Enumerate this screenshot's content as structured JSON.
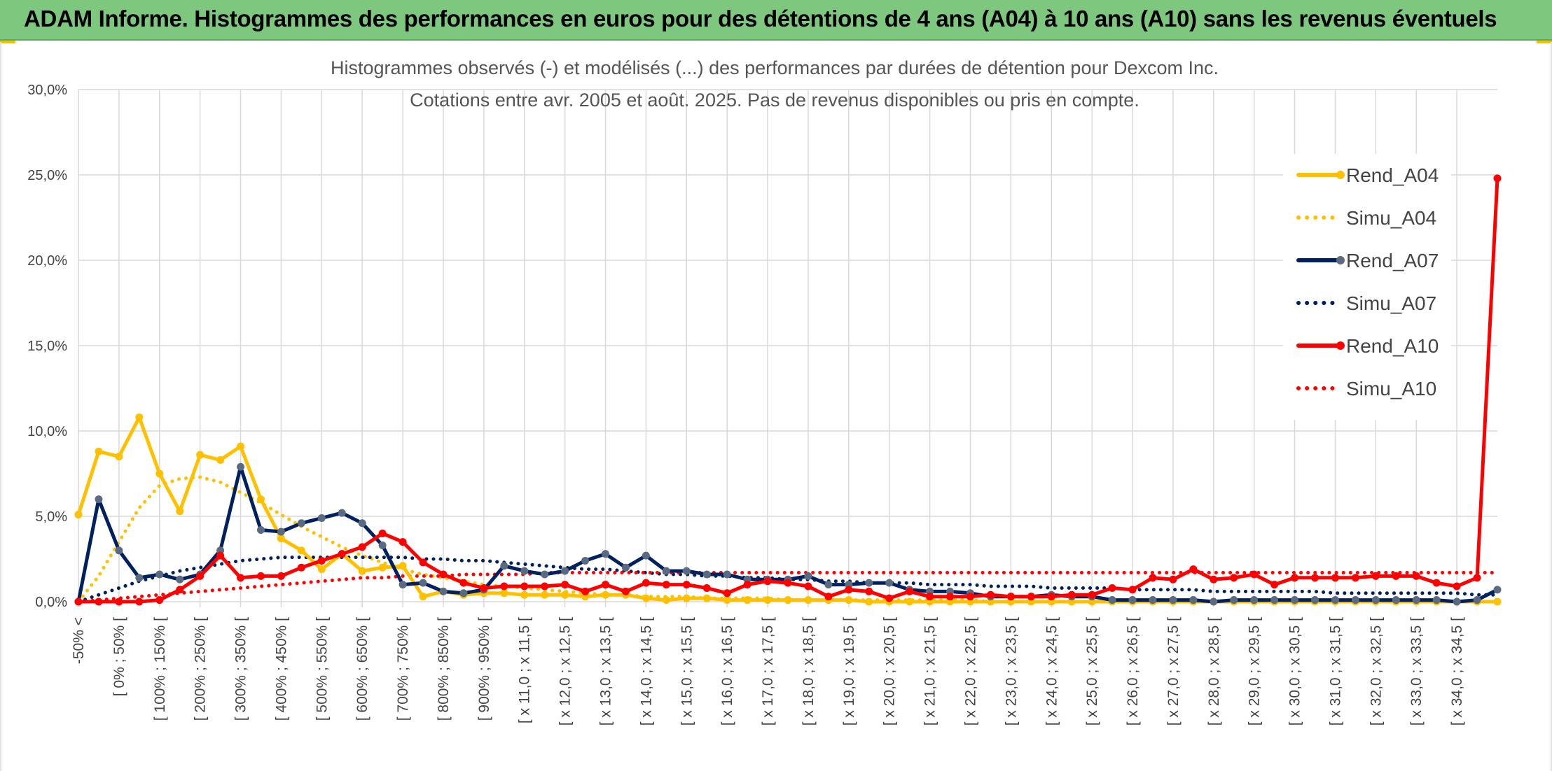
{
  "banner": {
    "title": "ADAM Informe. Histogrammes des performances en euros pour des détentions de 4 ans (A04) à 10 ans (A10) sans les revenus éventuels"
  },
  "colors": {
    "banner_bg": "#7dc77f",
    "a04": "#ffc000",
    "a07": "#002060",
    "a10": "#ff0000",
    "a07_marker": "#5a6a80",
    "grid": "#d9d9d9"
  },
  "chart_data": {
    "type": "line",
    "title": "Histogrammes observés (-) et modélisés (...) des performances par durées de détention pour Dexcom Inc.",
    "subtitle": "Cotations entre avr. 2005 et août. 2025. Pas de revenus disponibles ou pris en compte.",
    "y_ticks": [
      "0,0%",
      "5,0%",
      "10,0%",
      "15,0%",
      "20,0%",
      "25,0%",
      "30,0%"
    ],
    "ylim": [
      0,
      30
    ],
    "grid": true,
    "legend_position": "right",
    "x_tick_labels": [
      "-50% <",
      "[ 0% ; 50% [",
      "[ 100% ; 150% [",
      "[ 200% ; 250% [",
      "[ 300% ; 350% [",
      "[ 400% ; 450% [",
      "[ 500% ; 550% [",
      "[ 600% ; 650% [",
      "[ 700% ; 750% [",
      "[ 800% ; 850% [",
      "[ 900% ; 950% [",
      "[ x 11,0 ; x 11,5 [",
      "[ x 12,0 ; x 12,5 [",
      "[ x 13,0 ; x 13,5 [",
      "[ x 14,0 ; x 14,5 [",
      "[ x 15,0 ; x 15,5 [",
      "[ x 16,0 ; x 16,5 [",
      "[ x 17,0 ; x 17,5 [",
      "[ x 18,0 ; x 18,5 [",
      "[ x 19,0 ; x 19,5 [",
      "[ x 20,0 ; x 20,5 [",
      "[ x 21,0 ; x 21,5 [",
      "[ x 22,0 ; x 22,5 [",
      "[ x 23,0 ; x 23,5 [",
      "[ x 24,0 ; x 24,5 [",
      "[ x 25,0 ; x 25,5 [",
      "[ x 26,0 ; x 26,5 [",
      "[ x 27,0 ; x 27,5 [",
      "[ x 28,0 ; x 28,5 [",
      "[ x 29,0 ; x 29,5 [",
      "[ x 30,0 ; x 30,5 [",
      "[ x 31,0 ; x 31,5 [",
      "[ x 32,0 ; x 32,5 [",
      "[ x 33,0 ; x 33,5 [",
      "[ x 34,0 ; x 34,5 ["
    ],
    "series": [
      {
        "name": "Rend_A04",
        "style": "solid",
        "color": "#ffc000",
        "markers": true,
        "values": [
          5.1,
          8.8,
          8.5,
          10.8,
          7.5,
          5.3,
          8.6,
          8.3,
          9.1,
          6.0,
          3.7,
          3.0,
          1.9,
          2.8,
          1.8,
          2.0,
          2.1,
          0.3,
          0.6,
          0.4,
          0.5,
          0.5,
          0.4,
          0.4,
          0.4,
          0.3,
          0.4,
          0.4,
          0.2,
          0.1,
          0.2,
          0.2,
          0.1,
          0.1,
          0.1,
          0.1,
          0.1,
          0.1,
          0.1,
          0.0,
          0.0,
          0.0,
          0.0,
          0.0,
          0.0,
          0.0,
          0.0,
          0.0,
          0.0,
          0.0,
          0.0,
          0.0,
          0.0,
          0.0,
          0.0,
          0.0,
          0.0,
          0.0,
          0.0,
          0.0,
          0.0,
          0.0,
          0.0,
          0.0,
          0.0,
          0.0,
          0.0,
          0.0,
          0.0,
          0.0,
          0.0
        ]
      },
      {
        "name": "Simu_A04",
        "style": "dotted",
        "color": "#ffc000",
        "markers": false,
        "values": [
          0.0,
          1.5,
          3.5,
          5.5,
          6.8,
          7.2,
          7.3,
          7.0,
          6.4,
          5.8,
          5.1,
          4.4,
          3.8,
          3.2,
          2.7,
          2.3,
          1.9,
          1.6,
          1.4,
          1.2,
          1.0,
          0.9,
          0.8,
          0.7,
          0.6,
          0.5,
          0.4,
          0.4,
          0.3,
          0.3,
          0.3,
          0.2,
          0.2,
          0.2,
          0.2,
          0.1,
          0.1,
          0.1,
          0.1,
          0.1,
          0.1,
          0.1,
          0.1,
          0.1,
          0.1,
          0.0,
          0.0,
          0.0,
          0.0,
          0.0,
          0.0,
          0.0,
          0.0,
          0.0,
          0.0,
          0.0,
          0.0,
          0.0,
          0.0,
          0.0,
          0.0,
          0.0,
          0.0,
          0.0,
          0.0,
          0.0,
          0.0,
          0.0,
          0.0,
          0.0,
          0.0
        ]
      },
      {
        "name": "Rend_A07",
        "style": "solid",
        "color": "#002060",
        "markers": true,
        "values": [
          0.0,
          6.0,
          3.0,
          1.4,
          1.6,
          1.3,
          1.6,
          3.0,
          7.9,
          4.2,
          4.1,
          4.6,
          4.9,
          5.2,
          4.6,
          3.3,
          1.0,
          1.1,
          0.6,
          0.5,
          0.7,
          2.1,
          1.8,
          1.6,
          1.8,
          2.4,
          2.8,
          2.0,
          2.7,
          1.8,
          1.8,
          1.6,
          1.6,
          1.3,
          1.3,
          1.3,
          1.5,
          1.0,
          1.0,
          1.1,
          1.1,
          0.7,
          0.6,
          0.6,
          0.5,
          0.3,
          0.3,
          0.3,
          0.4,
          0.3,
          0.3,
          0.1,
          0.1,
          0.1,
          0.1,
          0.1,
          0.0,
          0.1,
          0.1,
          0.1,
          0.1,
          0.1,
          0.1,
          0.1,
          0.1,
          0.1,
          0.1,
          0.1,
          0.0,
          0.1,
          0.7
        ]
      },
      {
        "name": "Simu_A07",
        "style": "dotted",
        "color": "#002060",
        "markers": false,
        "values": [
          0.0,
          0.4,
          0.8,
          1.2,
          1.5,
          1.8,
          2.0,
          2.2,
          2.4,
          2.5,
          2.6,
          2.6,
          2.6,
          2.6,
          2.6,
          2.6,
          2.6,
          2.5,
          2.5,
          2.4,
          2.4,
          2.3,
          2.2,
          2.1,
          2.0,
          1.9,
          1.9,
          1.8,
          1.7,
          1.6,
          1.6,
          1.5,
          1.5,
          1.4,
          1.4,
          1.3,
          1.3,
          1.2,
          1.2,
          1.1,
          1.1,
          1.1,
          1.0,
          1.0,
          1.0,
          0.9,
          0.9,
          0.9,
          0.8,
          0.8,
          0.8,
          0.8,
          0.7,
          0.7,
          0.7,
          0.7,
          0.6,
          0.6,
          0.6,
          0.6,
          0.6,
          0.6,
          0.5,
          0.5,
          0.5,
          0.5,
          0.5,
          0.5,
          0.5,
          0.4,
          0.4
        ]
      },
      {
        "name": "Rend_A10",
        "style": "solid",
        "color": "#ff0000",
        "markers": true,
        "values": [
          0.0,
          0.0,
          0.0,
          0.0,
          0.1,
          0.7,
          1.5,
          2.7,
          1.4,
          1.5,
          1.5,
          2.0,
          2.4,
          2.8,
          3.2,
          4.0,
          3.5,
          2.3,
          1.6,
          1.1,
          0.8,
          0.9,
          0.9,
          0.9,
          1.0,
          0.6,
          1.0,
          0.6,
          1.1,
          1.0,
          1.0,
          0.8,
          0.5,
          1.0,
          1.2,
          1.1,
          0.9,
          0.3,
          0.7,
          0.6,
          0.2,
          0.6,
          0.3,
          0.3,
          0.3,
          0.4,
          0.3,
          0.3,
          0.3,
          0.4,
          0.4,
          0.8,
          0.7,
          1.4,
          1.3,
          1.9,
          1.3,
          1.4,
          1.6,
          1.0,
          1.4,
          1.4,
          1.4,
          1.4,
          1.5,
          1.5,
          1.5,
          1.1,
          0.9,
          1.4,
          24.8
        ]
      },
      {
        "name": "Simu_A10",
        "style": "dotted",
        "color": "#ff0000",
        "markers": false,
        "values": [
          0.0,
          0.1,
          0.2,
          0.3,
          0.4,
          0.5,
          0.6,
          0.7,
          0.8,
          0.9,
          1.0,
          1.1,
          1.2,
          1.3,
          1.4,
          1.4,
          1.5,
          1.5,
          1.5,
          1.6,
          1.6,
          1.6,
          1.6,
          1.7,
          1.7,
          1.7,
          1.7,
          1.7,
          1.7,
          1.7,
          1.7,
          1.7,
          1.7,
          1.7,
          1.7,
          1.7,
          1.7,
          1.7,
          1.7,
          1.7,
          1.7,
          1.7,
          1.7,
          1.7,
          1.7,
          1.7,
          1.7,
          1.7,
          1.7,
          1.7,
          1.7,
          1.7,
          1.7,
          1.7,
          1.7,
          1.7,
          1.7,
          1.7,
          1.7,
          1.7,
          1.7,
          1.7,
          1.7,
          1.7,
          1.7,
          1.7,
          1.7,
          1.7,
          1.7,
          1.7,
          1.7
        ]
      }
    ]
  }
}
